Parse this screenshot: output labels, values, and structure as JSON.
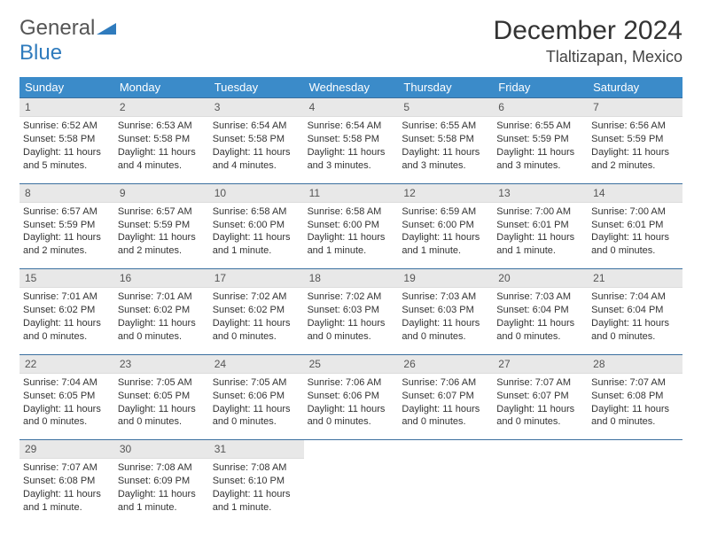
{
  "logo": {
    "part1": "General",
    "part2": "Blue"
  },
  "title": "December 2024",
  "location": "Tlaltizapan, Mexico",
  "header_bg": "#3b8bc9",
  "border_color": "#3b6f9f",
  "daynum_bg": "#e8e8e8",
  "dow": [
    "Sunday",
    "Monday",
    "Tuesday",
    "Wednesday",
    "Thursday",
    "Friday",
    "Saturday"
  ],
  "weeks": [
    [
      {
        "n": "1",
        "sr": "6:52 AM",
        "ss": "5:58 PM",
        "dl": "11 hours and 5 minutes."
      },
      {
        "n": "2",
        "sr": "6:53 AM",
        "ss": "5:58 PM",
        "dl": "11 hours and 4 minutes."
      },
      {
        "n": "3",
        "sr": "6:54 AM",
        "ss": "5:58 PM",
        "dl": "11 hours and 4 minutes."
      },
      {
        "n": "4",
        "sr": "6:54 AM",
        "ss": "5:58 PM",
        "dl": "11 hours and 3 minutes."
      },
      {
        "n": "5",
        "sr": "6:55 AM",
        "ss": "5:58 PM",
        "dl": "11 hours and 3 minutes."
      },
      {
        "n": "6",
        "sr": "6:55 AM",
        "ss": "5:59 PM",
        "dl": "11 hours and 3 minutes."
      },
      {
        "n": "7",
        "sr": "6:56 AM",
        "ss": "5:59 PM",
        "dl": "11 hours and 2 minutes."
      }
    ],
    [
      {
        "n": "8",
        "sr": "6:57 AM",
        "ss": "5:59 PM",
        "dl": "11 hours and 2 minutes."
      },
      {
        "n": "9",
        "sr": "6:57 AM",
        "ss": "5:59 PM",
        "dl": "11 hours and 2 minutes."
      },
      {
        "n": "10",
        "sr": "6:58 AM",
        "ss": "6:00 PM",
        "dl": "11 hours and 1 minute."
      },
      {
        "n": "11",
        "sr": "6:58 AM",
        "ss": "6:00 PM",
        "dl": "11 hours and 1 minute."
      },
      {
        "n": "12",
        "sr": "6:59 AM",
        "ss": "6:00 PM",
        "dl": "11 hours and 1 minute."
      },
      {
        "n": "13",
        "sr": "7:00 AM",
        "ss": "6:01 PM",
        "dl": "11 hours and 1 minute."
      },
      {
        "n": "14",
        "sr": "7:00 AM",
        "ss": "6:01 PM",
        "dl": "11 hours and 0 minutes."
      }
    ],
    [
      {
        "n": "15",
        "sr": "7:01 AM",
        "ss": "6:02 PM",
        "dl": "11 hours and 0 minutes."
      },
      {
        "n": "16",
        "sr": "7:01 AM",
        "ss": "6:02 PM",
        "dl": "11 hours and 0 minutes."
      },
      {
        "n": "17",
        "sr": "7:02 AM",
        "ss": "6:02 PM",
        "dl": "11 hours and 0 minutes."
      },
      {
        "n": "18",
        "sr": "7:02 AM",
        "ss": "6:03 PM",
        "dl": "11 hours and 0 minutes."
      },
      {
        "n": "19",
        "sr": "7:03 AM",
        "ss": "6:03 PM",
        "dl": "11 hours and 0 minutes."
      },
      {
        "n": "20",
        "sr": "7:03 AM",
        "ss": "6:04 PM",
        "dl": "11 hours and 0 minutes."
      },
      {
        "n": "21",
        "sr": "7:04 AM",
        "ss": "6:04 PM",
        "dl": "11 hours and 0 minutes."
      }
    ],
    [
      {
        "n": "22",
        "sr": "7:04 AM",
        "ss": "6:05 PM",
        "dl": "11 hours and 0 minutes."
      },
      {
        "n": "23",
        "sr": "7:05 AM",
        "ss": "6:05 PM",
        "dl": "11 hours and 0 minutes."
      },
      {
        "n": "24",
        "sr": "7:05 AM",
        "ss": "6:06 PM",
        "dl": "11 hours and 0 minutes."
      },
      {
        "n": "25",
        "sr": "7:06 AM",
        "ss": "6:06 PM",
        "dl": "11 hours and 0 minutes."
      },
      {
        "n": "26",
        "sr": "7:06 AM",
        "ss": "6:07 PM",
        "dl": "11 hours and 0 minutes."
      },
      {
        "n": "27",
        "sr": "7:07 AM",
        "ss": "6:07 PM",
        "dl": "11 hours and 0 minutes."
      },
      {
        "n": "28",
        "sr": "7:07 AM",
        "ss": "6:08 PM",
        "dl": "11 hours and 0 minutes."
      }
    ],
    [
      {
        "n": "29",
        "sr": "7:07 AM",
        "ss": "6:08 PM",
        "dl": "11 hours and 1 minute."
      },
      {
        "n": "30",
        "sr": "7:08 AM",
        "ss": "6:09 PM",
        "dl": "11 hours and 1 minute."
      },
      {
        "n": "31",
        "sr": "7:08 AM",
        "ss": "6:10 PM",
        "dl": "11 hours and 1 minute."
      },
      null,
      null,
      null,
      null
    ]
  ],
  "labels": {
    "sunrise": "Sunrise:",
    "sunset": "Sunset:",
    "daylight": "Daylight:"
  }
}
